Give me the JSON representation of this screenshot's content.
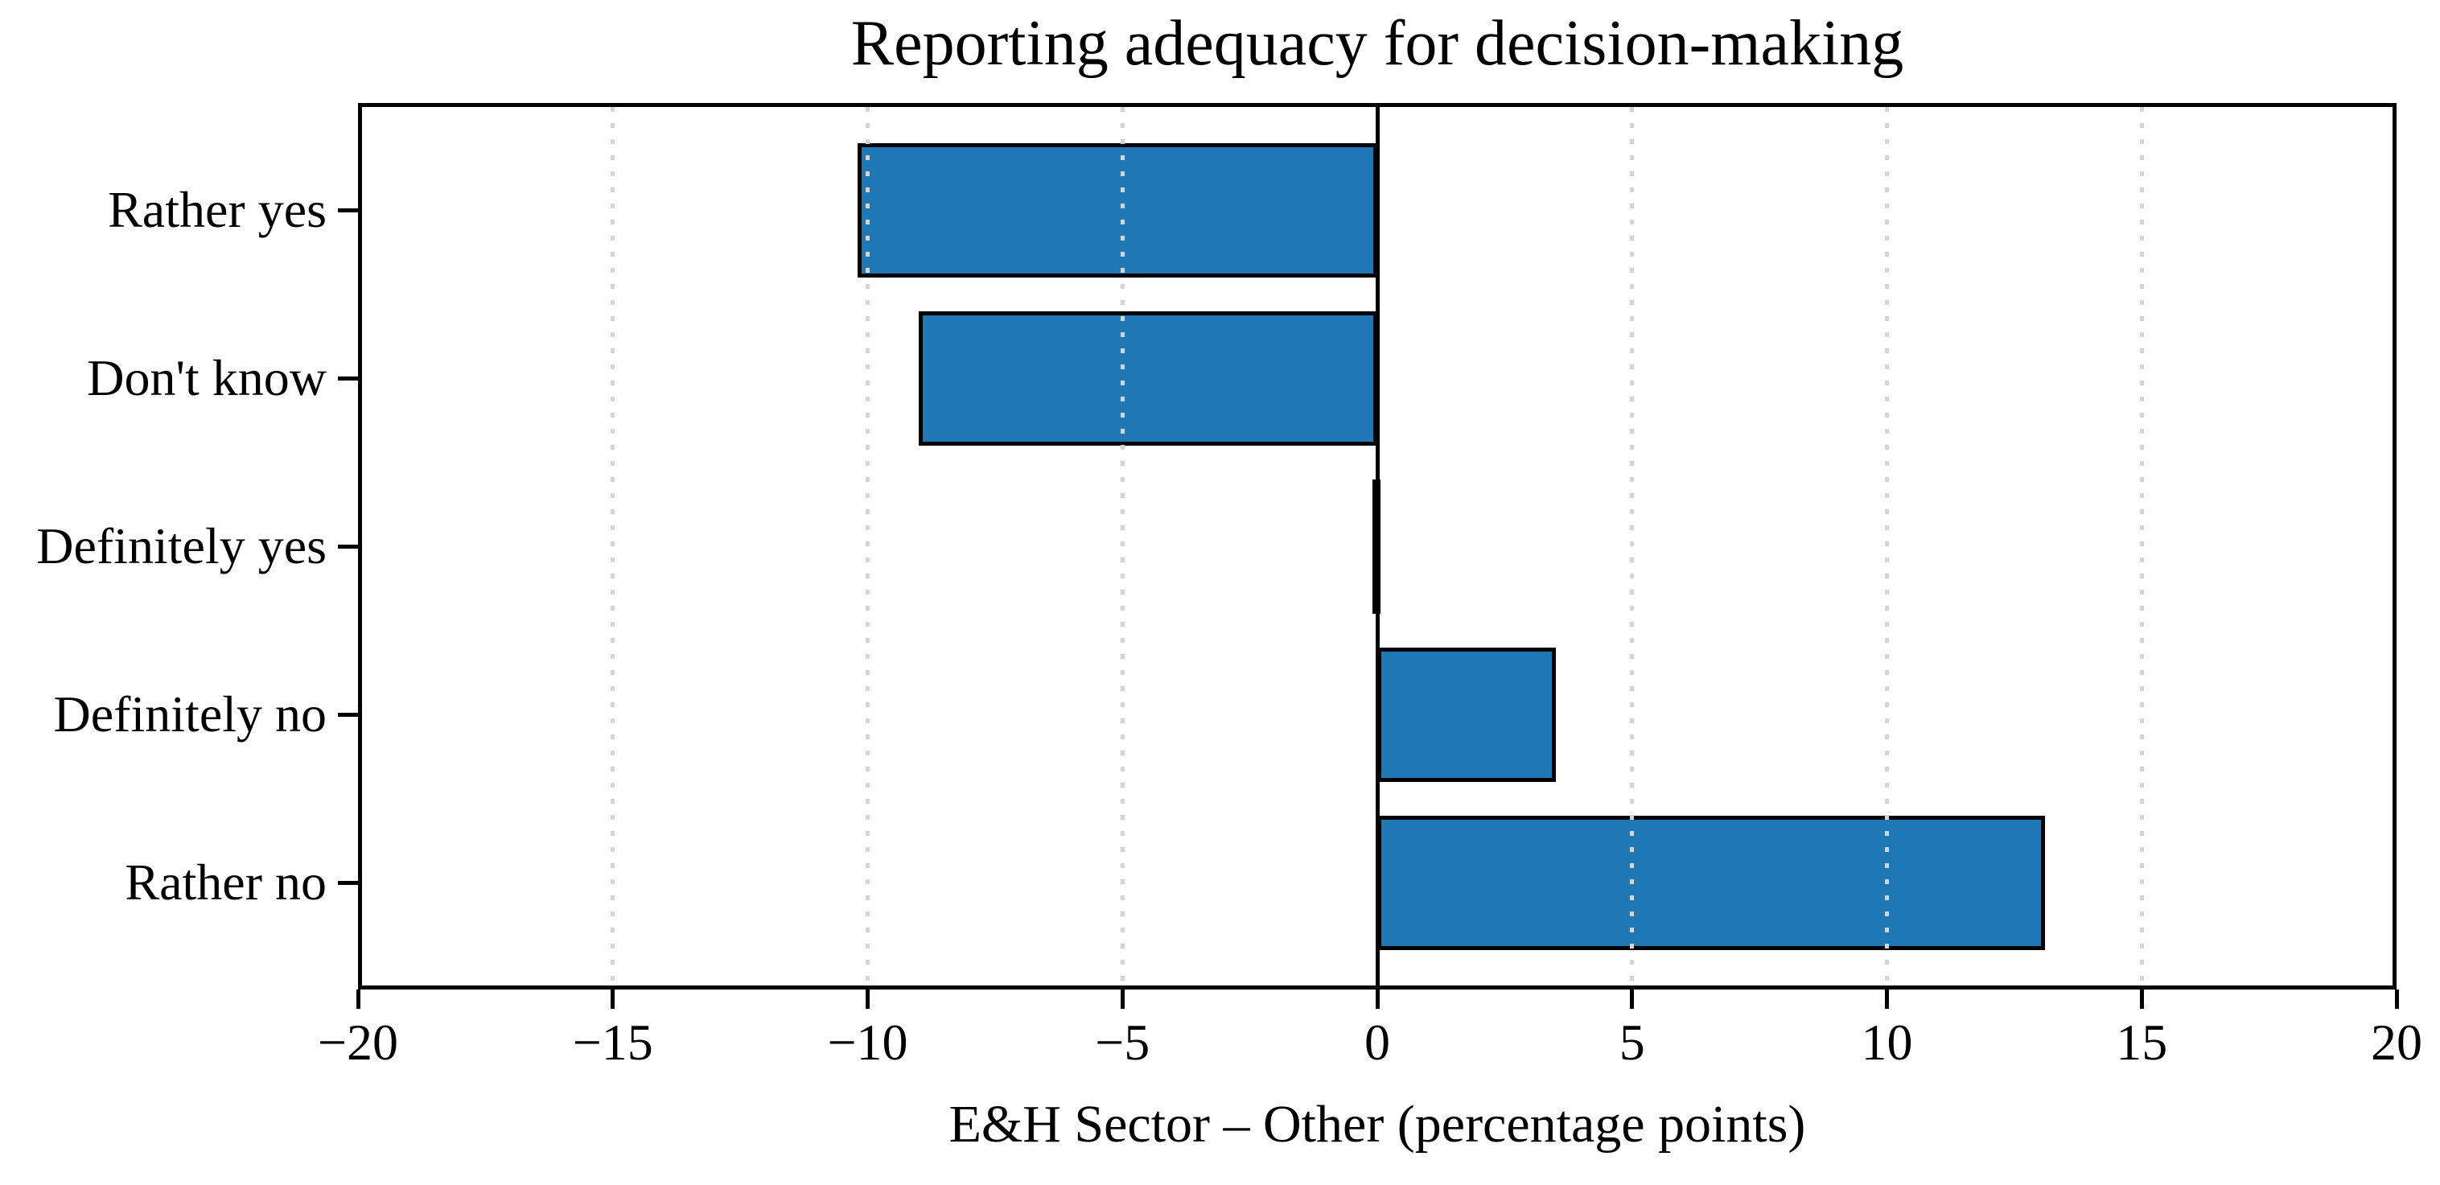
{
  "figure": {
    "background": "#ffffff",
    "text_color": "#000000"
  },
  "chart_data": {
    "type": "bar",
    "orientation": "horizontal",
    "title": "Reporting adequacy for decision-making",
    "xlabel": "E&H Sector – Other (percentage points)",
    "ylabel": "",
    "categories": [
      "Rather yes",
      "Don't know",
      "Definitely yes",
      "Definitely no",
      "Rather no"
    ],
    "values": [
      -10.2,
      -9.0,
      -0.1,
      3.5,
      13.1
    ],
    "xlim": [
      -20,
      20
    ],
    "xticks": [
      -20,
      -15,
      -10,
      -5,
      0,
      5,
      10,
      15,
      20
    ],
    "xtick_labels": [
      "−20",
      "−15",
      "−10",
      "−5",
      "0",
      "5",
      "10",
      "15",
      "20"
    ],
    "grid": "vertical-dotted",
    "grid_above_bars": true,
    "zero_line": true,
    "legend": "none",
    "bar_color": "#1f77b4",
    "bar_edge_color": "#000000",
    "grid_color": "#d4d4d4",
    "axis_color": "#000000"
  }
}
